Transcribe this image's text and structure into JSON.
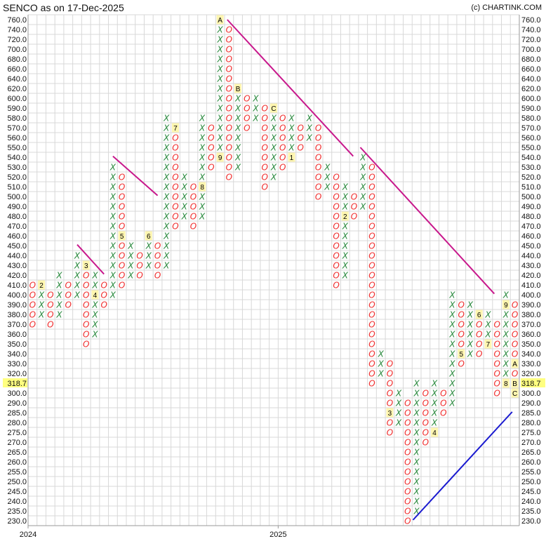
{
  "header": {
    "title": "SENCO as on 17-Dec-2025",
    "copyright": "(c) CHARTINK.COM"
  },
  "chart_data": {
    "type": "point-and-figure",
    "title": "SENCO as on 17-Dec-2025",
    "box_prices": [
      760,
      740,
      720,
      700,
      680,
      660,
      640,
      620,
      600,
      590,
      580,
      570,
      560,
      550,
      540,
      530,
      520,
      510,
      500,
      490,
      480,
      470,
      460,
      450,
      440,
      430,
      420,
      410,
      400,
      390,
      380,
      370,
      360,
      350,
      340,
      330,
      320,
      310,
      300,
      290,
      285,
      280,
      275,
      270,
      265,
      260,
      255,
      250,
      245,
      240,
      235,
      230
    ],
    "current_price": "318.7",
    "current_price_box": 310,
    "x_labels": [
      {
        "column": 0,
        "text": "2024"
      },
      {
        "column": 28,
        "text": "2025"
      }
    ],
    "grid": true,
    "colors": {
      "x": "#2a8a3e",
      "o": "#f03030",
      "resistance_trendline": "#c8188c",
      "support_trendline": "#1a1ad0",
      "highlight": "#ffff80"
    },
    "columns": [
      {
        "type": "O",
        "low": 370,
        "high": 410
      },
      {
        "type": "X",
        "low": 380,
        "high": 410,
        "month_marks": {
          "410": "2"
        }
      },
      {
        "type": "O",
        "low": 370,
        "high": 400
      },
      {
        "type": "X",
        "low": 380,
        "high": 420
      },
      {
        "type": "O",
        "low": 390,
        "high": 410
      },
      {
        "type": "X",
        "low": 400,
        "high": 440
      },
      {
        "type": "O",
        "low": 350,
        "high": 430,
        "month_marks": {
          "430": "3"
        }
      },
      {
        "type": "X",
        "low": 360,
        "high": 420,
        "month_marks": {
          "400": "4"
        }
      },
      {
        "type": "O",
        "low": 390,
        "high": 410
      },
      {
        "type": "X",
        "low": 400,
        "high": 530
      },
      {
        "type": "O",
        "low": 410,
        "high": 520,
        "month_marks": {
          "460": "5"
        }
      },
      {
        "type": "X",
        "low": 420,
        "high": 450
      },
      {
        "type": "O",
        "low": 420,
        "high": 440
      },
      {
        "type": "X",
        "low": 430,
        "high": 460,
        "month_marks": {
          "460": "6"
        }
      },
      {
        "type": "O",
        "low": 420,
        "high": 450
      },
      {
        "type": "X",
        "low": 430,
        "high": 580
      },
      {
        "type": "O",
        "low": 470,
        "high": 570,
        "month_marks": {
          "570": "7"
        }
      },
      {
        "type": "X",
        "low": 480,
        "high": 520
      },
      {
        "type": "O",
        "low": 470,
        "high": 510
      },
      {
        "type": "X",
        "low": 480,
        "high": 580,
        "month_marks": {
          "510": "8"
        }
      },
      {
        "type": "O",
        "low": 530,
        "high": 570
      },
      {
        "type": "X",
        "low": 540,
        "high": 760,
        "month_marks": {
          "540": "9",
          "760": "A"
        }
      },
      {
        "type": "O",
        "low": 520,
        "high": 740
      },
      {
        "type": "X",
        "low": 530,
        "high": 620,
        "month_marks": {
          "620": "B"
        }
      },
      {
        "type": "O",
        "low": 570,
        "high": 600
      },
      {
        "type": "X",
        "low": 580,
        "high": 600
      },
      {
        "type": "O",
        "low": 510,
        "high": 590
      },
      {
        "type": "X",
        "low": 520,
        "high": 590,
        "month_marks": {
          "590": "C"
        }
      },
      {
        "type": "O",
        "low": 530,
        "high": 580
      },
      {
        "type": "X",
        "low": 540,
        "high": 580,
        "month_marks": {
          "540": "1"
        }
      },
      {
        "type": "O",
        "low": 550,
        "high": 570
      },
      {
        "type": "X",
        "low": 560,
        "high": 580
      },
      {
        "type": "O",
        "low": 500,
        "high": 570
      },
      {
        "type": "X",
        "low": 510,
        "high": 530
      },
      {
        "type": "O",
        "low": 410,
        "high": 520
      },
      {
        "type": "X",
        "low": 420,
        "high": 510,
        "month_marks": {
          "480": "2"
        }
      },
      {
        "type": "O",
        "low": 480,
        "high": 500
      },
      {
        "type": "X",
        "low": 490,
        "high": 540
      },
      {
        "type": "O",
        "low": 310,
        "high": 530
      },
      {
        "type": "X",
        "low": 320,
        "high": 340
      },
      {
        "type": "O",
        "low": 275,
        "high": 330,
        "month_marks": {
          "285": "3"
        }
      },
      {
        "type": "X",
        "low": 280,
        "high": 300
      },
      {
        "type": "O",
        "low": 230,
        "high": 290
      },
      {
        "type": "X",
        "low": 235,
        "high": 310
      },
      {
        "type": "O",
        "low": 270,
        "high": 300
      },
      {
        "type": "X",
        "low": 275,
        "high": 310,
        "month_marks": {
          "275": "4"
        }
      },
      {
        "type": "O",
        "low": 285,
        "high": 300
      },
      {
        "type": "X",
        "low": 290,
        "high": 400
      },
      {
        "type": "O",
        "low": 330,
        "high": 390,
        "month_marks": {
          "340": "5"
        }
      },
      {
        "type": "X",
        "low": 340,
        "high": 390
      },
      {
        "type": "O",
        "low": 340,
        "high": 380,
        "month_marks": {
          "380": "6"
        }
      },
      {
        "type": "X",
        "low": 350,
        "high": 380,
        "month_marks": {
          "350": "7"
        }
      },
      {
        "type": "O",
        "low": 300,
        "high": 370
      },
      {
        "type": "X",
        "low": 310,
        "high": 400,
        "month_marks": {
          "310": "8",
          "390": "9"
        }
      },
      {
        "type": "O",
        "low": 300,
        "high": 390,
        "month_marks": {
          "330": "A",
          "310": "B",
          "300": "C"
        }
      }
    ],
    "trendlines": [
      {
        "kind": "resistance",
        "start": {
          "column": 5,
          "price": 451
        },
        "end": {
          "column": 8,
          "price": 421
        }
      },
      {
        "kind": "resistance",
        "start": {
          "column": 9,
          "price": 541
        },
        "end": {
          "column": 14,
          "price": 501
        }
      },
      {
        "kind": "resistance",
        "start": {
          "column": 21.8,
          "price": 760
        },
        "end": {
          "column": 35.9,
          "price": 541
        }
      },
      {
        "kind": "resistance",
        "start": {
          "column": 36.7,
          "price": 550
        },
        "end": {
          "column": 51.7,
          "price": 401
        }
      },
      {
        "kind": "support",
        "start": {
          "column": 42.6,
          "price": 230.4
        },
        "end": {
          "column": 53.7,
          "price": 285.4
        }
      }
    ]
  }
}
